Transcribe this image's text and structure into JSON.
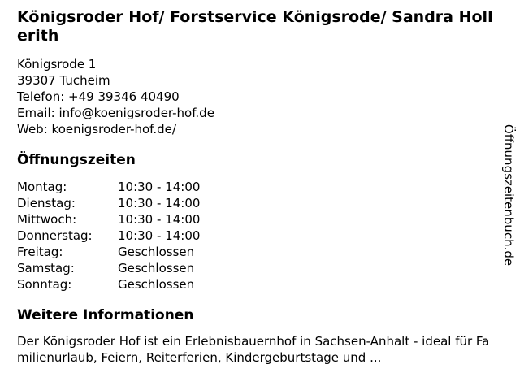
{
  "colors": {
    "background": "#ffffff",
    "text": "#000000"
  },
  "brand": {
    "watermark": "Öffnungszeitenbuch.de"
  },
  "business": {
    "title": "Königsroder Hof/ Forstservice Königsrode/ Sandra Hollerith",
    "address": {
      "street": "Königsrode 1",
      "city": "39307 Tucheim"
    },
    "contact": {
      "phone_label": "Telefon:",
      "phone": "+49 39346 40490",
      "email_label": "Email:",
      "email": "info@koenigsroder-hof.de",
      "web_label": "Web:",
      "web": "koenigsroder-hof.de/"
    }
  },
  "opening_hours": {
    "heading": "Öffnungszeiten",
    "rows": [
      {
        "day": "Montag:",
        "hours": "10:30 - 14:00"
      },
      {
        "day": "Dienstag:",
        "hours": "10:30 - 14:00"
      },
      {
        "day": "Mittwoch:",
        "hours": "10:30 - 14:00"
      },
      {
        "day": "Donnerstag:",
        "hours": "10:30 - 14:00"
      },
      {
        "day": "Freitag:",
        "hours": "Geschlossen"
      },
      {
        "day": "Samstag:",
        "hours": "Geschlossen"
      },
      {
        "day": "Sonntag:",
        "hours": "Geschlossen"
      }
    ]
  },
  "info": {
    "heading": "Weitere Informationen",
    "text": "Der Königsroder Hof ist ein Erlebnisbauernhof in Sachsen-Anhalt - ideal für Familienurlaub, Feiern, Reiterferien, Kindergeburtstage und ..."
  }
}
